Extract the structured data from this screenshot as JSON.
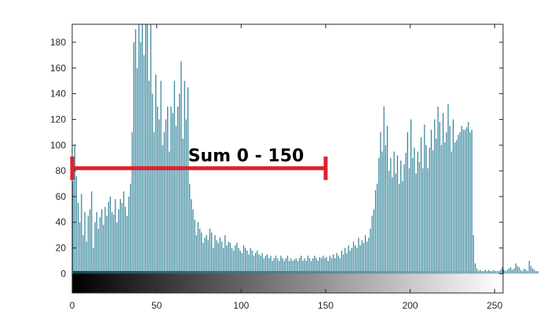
{
  "chart_data": {
    "type": "bar",
    "title": "",
    "xlabel": "",
    "ylabel": "",
    "xlim": [
      0,
      255
    ],
    "ylim": [
      -15,
      194
    ],
    "x_ticks": [
      0,
      50,
      100,
      150,
      200,
      250
    ],
    "y_ticks": [
      0,
      20,
      40,
      60,
      80,
      100,
      120,
      140,
      160,
      180
    ],
    "grid": false,
    "legend": "none",
    "colors": {
      "bar": "#2e8197",
      "annotation": "#e0202b",
      "axis": "#262626"
    },
    "gradient_colorbar": {
      "from": "#000000",
      "to": "#ffffff",
      "range": [
        0,
        255
      ]
    },
    "series": [
      {
        "values": [
          72,
          100,
          76,
          55,
          40,
          62,
          30,
          48,
          25,
          45,
          50,
          64,
          20,
          40,
          48,
          35,
          44,
          50,
          38,
          52,
          45,
          56,
          60,
          48,
          46,
          58,
          40,
          50,
          58,
          55,
          64,
          52,
          45,
          60,
          70,
          110,
          180,
          190,
          160,
          194,
          180,
          194,
          170,
          194,
          194,
          150,
          194,
          140,
          110,
          155,
          130,
          120,
          150,
          100,
          110,
          120,
          130,
          95,
          130,
          125,
          150,
          115,
          130,
          140,
          165,
          105,
          150,
          120,
          145,
          70,
          58,
          50,
          42,
          30,
          40,
          35,
          32,
          24,
          28,
          30,
          26,
          35,
          32,
          20,
          30,
          26,
          24,
          28,
          25,
          20,
          30,
          22,
          25,
          24,
          20,
          18,
          22,
          24,
          20,
          18,
          16,
          22,
          20,
          18,
          15,
          20,
          18,
          14,
          16,
          18,
          15,
          14,
          16,
          12,
          14,
          15,
          12,
          14,
          10,
          12,
          14,
          12,
          10,
          14,
          12,
          10,
          12,
          14,
          10,
          12,
          10,
          11,
          12,
          10,
          12,
          14,
          10,
          12,
          10,
          14,
          12,
          10,
          12,
          14,
          12,
          10,
          13,
          12,
          14,
          12,
          13,
          10,
          14,
          12,
          15,
          12,
          16,
          14,
          12,
          18,
          15,
          20,
          16,
          22,
          18,
          20,
          25,
          22,
          20,
          28,
          22,
          26,
          24,
          30,
          25,
          28,
          35,
          45,
          50,
          65,
          70,
          90,
          110,
          95,
          130,
          100,
          115,
          80,
          90,
          75,
          95,
          78,
          92,
          70,
          88,
          72,
          85,
          94,
          110,
          82,
          120,
          90,
          98,
          78,
          95,
          87,
          106,
          82,
          116,
          100,
          82,
          98,
          112,
          96,
          120,
          105,
          130,
          118,
          100,
          125,
          102,
          110,
          132,
          115,
          95,
          120,
          102,
          104,
          108,
          110,
          115,
          112,
          112,
          114,
          118,
          110,
          112,
          30,
          8,
          4,
          2,
          3,
          2,
          2,
          3,
          2,
          3,
          2,
          2,
          3,
          2,
          2,
          2,
          3,
          5,
          3,
          2,
          3,
          4,
          5,
          3,
          4,
          8,
          6,
          5,
          3,
          2,
          4,
          3,
          2,
          10,
          6,
          4,
          3,
          2,
          2
        ]
      }
    ],
    "annotations": [
      {
        "type": "bracket",
        "x_from": 0,
        "x_to": 150,
        "y": 82,
        "label": "Sum 0 - 150"
      }
    ]
  }
}
